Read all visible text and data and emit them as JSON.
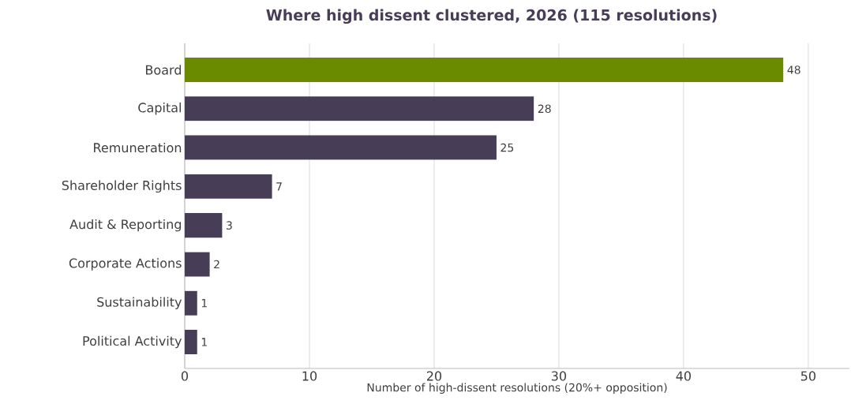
{
  "chart_data": {
    "type": "bar",
    "orientation": "horizontal",
    "title": "Where high dissent clustered, 2026 (115 resolutions)",
    "xlabel": "Number of high-dissent resolutions (20%+ opposition)",
    "categories": [
      "Board",
      "Capital",
      "Remuneration",
      "Shareholder Rights",
      "Audit & Reporting",
      "Corporate Actions",
      "Sustainability",
      "Political Activity"
    ],
    "values": [
      48,
      28,
      25,
      7,
      3,
      2,
      1,
      1
    ],
    "colors": [
      "#6a8a00",
      "#483d57",
      "#483d57",
      "#483d57",
      "#483d57",
      "#483d57",
      "#483d57",
      "#483d57"
    ],
    "xlim": [
      0,
      53.3
    ],
    "xticks": [
      0,
      10,
      20,
      30,
      40,
      50
    ],
    "grid": "x",
    "data_labels": true
  }
}
